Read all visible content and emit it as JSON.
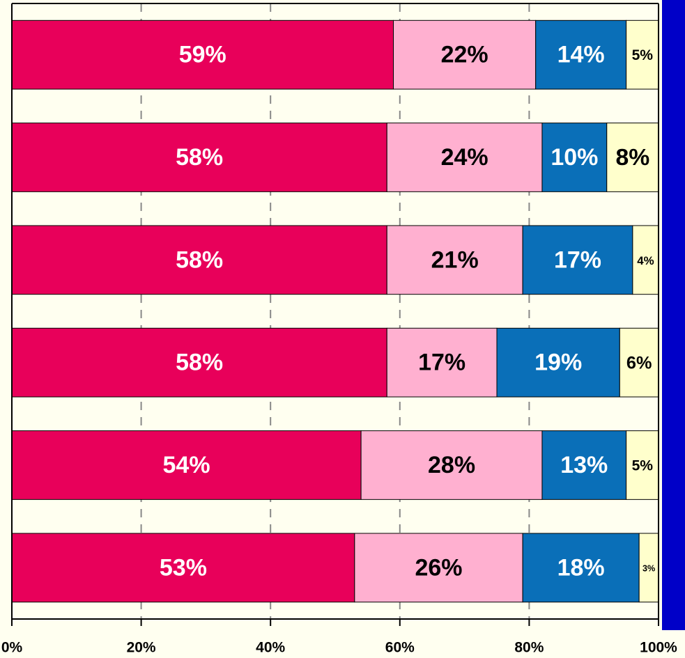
{
  "chart_data": {
    "type": "stacked_barh",
    "categories": [
      null,
      null,
      null,
      null,
      null,
      null
    ],
    "series": [
      {
        "color": "#e8005a",
        "label_color": "#ffffff",
        "values": [
          59,
          58,
          58,
          58,
          54,
          53
        ],
        "value_labels": [
          "59%",
          "58%",
          "58%",
          "58%",
          "54%",
          "53%"
        ]
      },
      {
        "color": "#ffb0d0",
        "label_color": "#000000",
        "values": [
          22,
          24,
          21,
          17,
          28,
          26
        ],
        "value_labels": [
          "22%",
          "24%",
          "21%",
          "17%",
          "28%",
          "26%"
        ]
      },
      {
        "color": "#0a6fb8",
        "label_color": "#ffffff",
        "values": [
          14,
          10,
          17,
          19,
          13,
          18
        ],
        "value_labels": [
          "14%",
          "10%",
          "17%",
          "19%",
          "13%",
          "18%"
        ]
      },
      {
        "color": "#ffffcc",
        "label_color": "#000000",
        "values": [
          5,
          8,
          4,
          6,
          5,
          3
        ],
        "value_labels": [
          "5%",
          "8%",
          "4%",
          "6%",
          "5%",
          "3%"
        ]
      }
    ],
    "xlim": [
      0,
      100
    ],
    "xticks": [
      {
        "value": 0,
        "label": "0%"
      },
      {
        "value": 20,
        "label": "20%"
      },
      {
        "value": 40,
        "label": "40%"
      },
      {
        "value": 60,
        "label": "60%"
      },
      {
        "value": 80,
        "label": "80%"
      },
      {
        "value": 100,
        "label": "100%"
      }
    ],
    "grid": true
  }
}
